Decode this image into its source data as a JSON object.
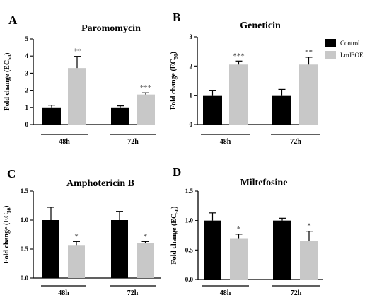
{
  "colors": {
    "control": "#000000",
    "overexpression": "#c8c8c8",
    "axis": "#000000"
  },
  "legend": {
    "items": [
      {
        "label": "Control",
        "color": "#000000"
      },
      {
        "label": "LmJ3OE",
        "color": "#c8c8c8"
      }
    ],
    "placement": "right"
  },
  "chart_data": [
    {
      "type": "bar",
      "panel": "A",
      "title": "Paromomycin",
      "ylabel": "Fold change (EC",
      "ylabel_sub": "50",
      "ylabel_close": ")",
      "ylim": [
        0,
        5
      ],
      "yticks": [
        0,
        1,
        2,
        3,
        4,
        5
      ],
      "ytick_labels": [
        "0",
        "1",
        "2",
        "3",
        "4",
        "5"
      ],
      "categories": [
        "48h",
        "72h"
      ],
      "series": [
        {
          "name": "Control",
          "values": [
            1.0,
            1.0
          ],
          "errors": [
            0.13,
            0.09
          ],
          "sig": [
            "",
            ""
          ]
        },
        {
          "name": "LmJ3OE",
          "values": [
            3.3,
            1.75
          ],
          "errors": [
            0.68,
            0.1
          ],
          "sig": [
            "**",
            "***"
          ]
        }
      ]
    },
    {
      "type": "bar",
      "panel": "B",
      "title": "Geneticin",
      "ylabel": "Fold change (EC",
      "ylabel_sub": "50",
      "ylabel_close": ")",
      "ylim": [
        0,
        3
      ],
      "yticks": [
        0,
        1,
        2,
        3
      ],
      "ytick_labels": [
        "0",
        "1",
        "2",
        "3"
      ],
      "categories": [
        "48h",
        "72h"
      ],
      "series": [
        {
          "name": "Control",
          "values": [
            1.0,
            1.0
          ],
          "errors": [
            0.17,
            0.2
          ],
          "sig": [
            "",
            ""
          ]
        },
        {
          "name": "LmJ3OE",
          "values": [
            2.05,
            2.05
          ],
          "errors": [
            0.12,
            0.25
          ],
          "sig": [
            "***",
            "**"
          ]
        }
      ]
    },
    {
      "type": "bar",
      "panel": "C",
      "title": "Amphotericin B",
      "ylabel": "Fold change (EC",
      "ylabel_sub": "50",
      "ylabel_close": ")",
      "ylim": [
        0,
        1.5
      ],
      "yticks": [
        0,
        0.5,
        1.0,
        1.5
      ],
      "ytick_labels": [
        "0.0",
        "0.5",
        "1.0",
        "1.5"
      ],
      "categories": [
        "48h",
        "72h"
      ],
      "series": [
        {
          "name": "Control",
          "values": [
            1.0,
            1.0
          ],
          "errors": [
            0.22,
            0.15
          ],
          "sig": [
            "",
            ""
          ]
        },
        {
          "name": "LmJ3OE",
          "values": [
            0.57,
            0.6
          ],
          "errors": [
            0.06,
            0.03
          ],
          "sig": [
            "*",
            "*"
          ]
        }
      ]
    },
    {
      "type": "bar",
      "panel": "D",
      "title": "Miltefosine",
      "ylabel": "Fold change (EC",
      "ylabel_sub": "50",
      "ylabel_close": ")",
      "ylim": [
        0,
        1.5
      ],
      "yticks": [
        0,
        0.5,
        1.0,
        1.5
      ],
      "ytick_labels": [
        "0.0",
        "0.5",
        "1.0",
        "1.5"
      ],
      "categories": [
        "48h",
        "72h"
      ],
      "series": [
        {
          "name": "Control",
          "values": [
            1.0,
            1.0
          ],
          "errors": [
            0.13,
            0.04
          ],
          "sig": [
            "",
            ""
          ]
        },
        {
          "name": "LmJ3OE",
          "values": [
            0.69,
            0.65
          ],
          "errors": [
            0.08,
            0.17
          ],
          "sig": [
            "*",
            "*"
          ]
        }
      ]
    }
  ]
}
